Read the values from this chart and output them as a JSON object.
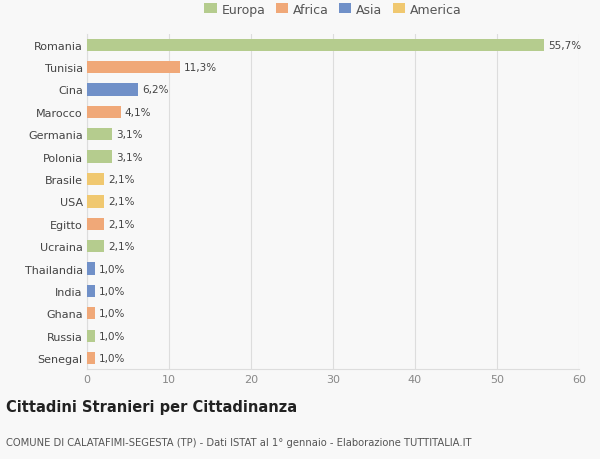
{
  "categories": [
    "Romania",
    "Tunisia",
    "Cina",
    "Marocco",
    "Germania",
    "Polonia",
    "Brasile",
    "USA",
    "Egitto",
    "Ucraina",
    "Thailandia",
    "India",
    "Ghana",
    "Russia",
    "Senegal"
  ],
  "values": [
    55.7,
    11.3,
    6.2,
    4.1,
    3.1,
    3.1,
    2.1,
    2.1,
    2.1,
    2.1,
    1.0,
    1.0,
    1.0,
    1.0,
    1.0
  ],
  "labels": [
    "55,7%",
    "11,3%",
    "6,2%",
    "4,1%",
    "3,1%",
    "3,1%",
    "2,1%",
    "2,1%",
    "2,1%",
    "2,1%",
    "1,0%",
    "1,0%",
    "1,0%",
    "1,0%",
    "1,0%"
  ],
  "colors": [
    "#b5cc8e",
    "#f0a878",
    "#7090c8",
    "#f0a878",
    "#b5cc8e",
    "#b5cc8e",
    "#f0c870",
    "#f0c870",
    "#f0a878",
    "#b5cc8e",
    "#7090c8",
    "#7090c8",
    "#f0a878",
    "#b5cc8e",
    "#f0a878"
  ],
  "legend_labels": [
    "Europa",
    "Africa",
    "Asia",
    "America"
  ],
  "legend_colors": [
    "#b5cc8e",
    "#f0a878",
    "#7090c8",
    "#f0c870"
  ],
  "title": "Cittadini Stranieri per Cittadinanza",
  "subtitle": "COMUNE DI CALATAFIMI-SEGESTA (TP) - Dati ISTAT al 1° gennaio - Elaborazione TUTTITALIA.IT",
  "xlim": [
    0,
    60
  ],
  "xticks": [
    0,
    10,
    20,
    30,
    40,
    50,
    60
  ],
  "background_color": "#f8f8f8",
  "grid_color": "#dddddd",
  "bar_height": 0.55
}
